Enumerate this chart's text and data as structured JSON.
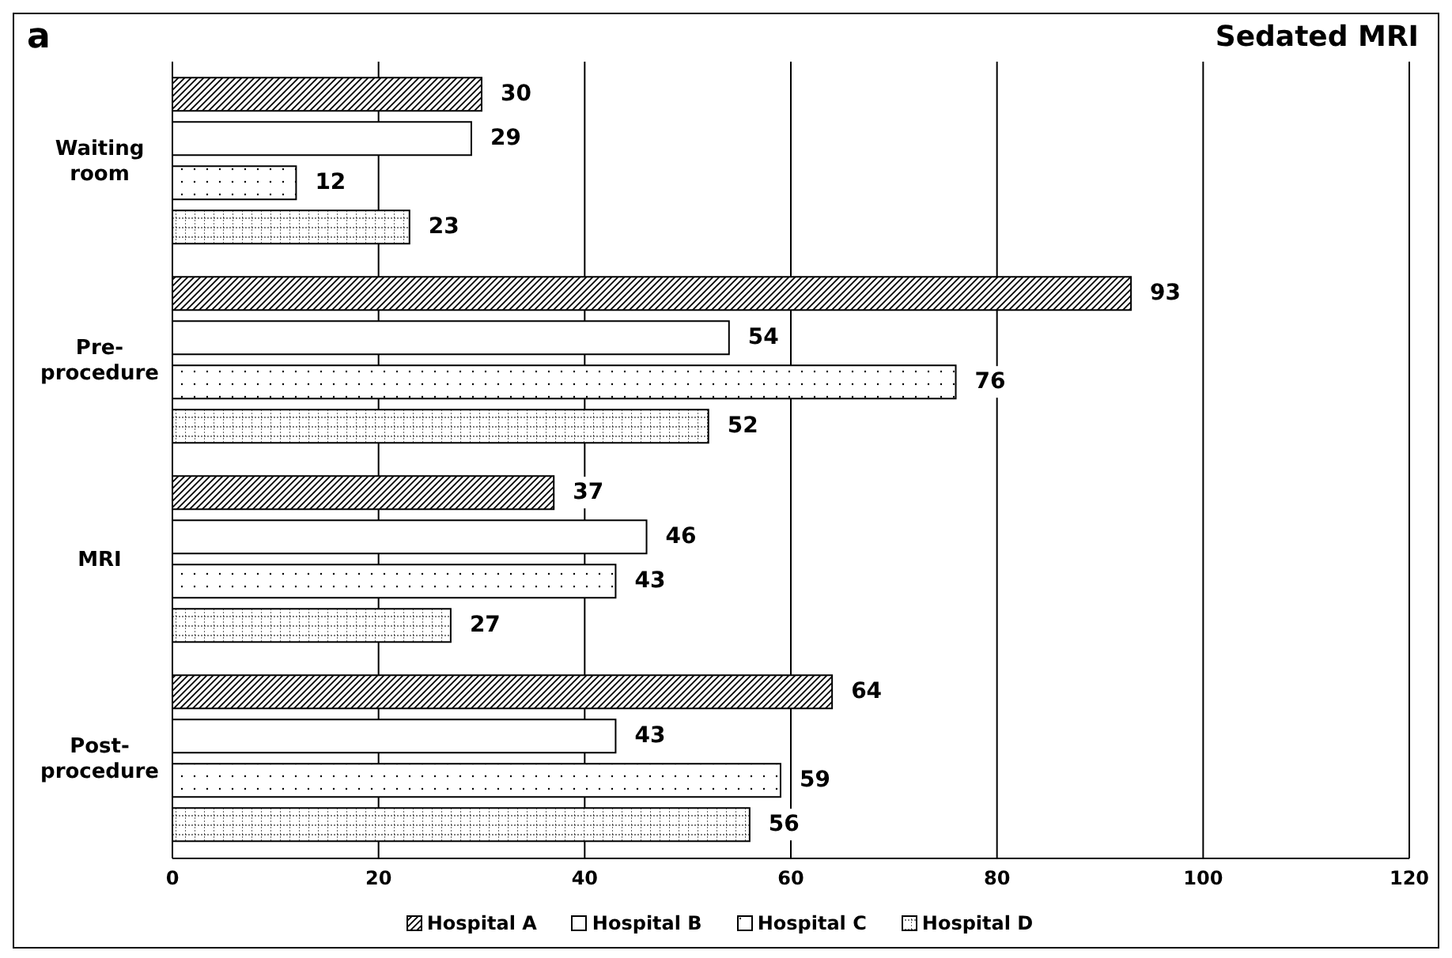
{
  "chart_data": {
    "type": "bar",
    "orientation": "horizontal",
    "title": "Sedated MRI",
    "annotations": [
      "a"
    ],
    "categories": [
      "Waiting room",
      "Pre-procedure",
      "MRI",
      "Post-procedure"
    ],
    "series": [
      {
        "name": "Hospital A",
        "color": "#000000",
        "values": [
          30,
          93,
          37,
          64
        ]
      },
      {
        "name": "Hospital B",
        "color": "#000000",
        "values": [
          29,
          54,
          46,
          43
        ]
      },
      {
        "name": "Hospital C",
        "color": "#000000",
        "values": [
          12,
          76,
          43,
          59
        ]
      },
      {
        "name": "Hospital D",
        "color": "#000000",
        "values": [
          23,
          52,
          27,
          56
        ]
      }
    ],
    "xlim": [
      0,
      120
    ],
    "xticks": [
      0,
      20,
      40,
      60,
      80,
      100,
      120
    ],
    "grid": "x",
    "legend": "bottom",
    "data_labels": true
  }
}
